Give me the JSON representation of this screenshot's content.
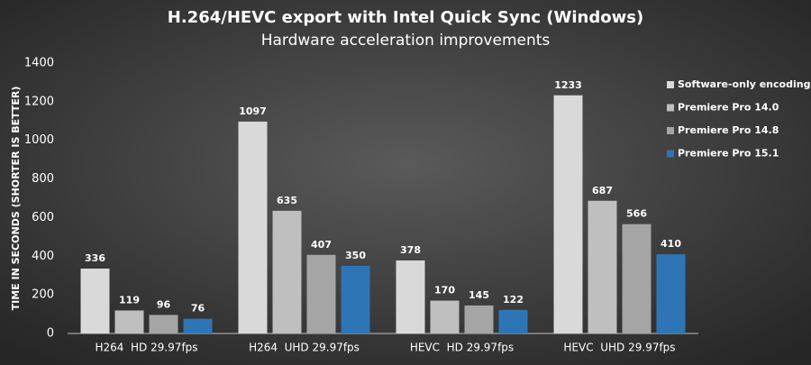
{
  "chart_data": {
    "type": "bar",
    "title": "H.264/HEVC export with Intel Quick Sync (Windows)",
    "subtitle": "Hardware acceleration improvements",
    "y_label": "TIME IN SECONDS (SHORTER IS BETTER)",
    "categories": [
      "H264  HD 29.97fps",
      "H264  UHD 29.97fps",
      "HEVC  HD 29.97fps",
      "HEVC  UHD 29.97fps"
    ],
    "series": [
      {
        "name": "Software-only encoding",
        "color": "#d9d9d9",
        "values": [
          336,
          1097,
          378,
          1233
        ]
      },
      {
        "name": "Premiere Pro 14.0",
        "color": "#bfbfbf",
        "values": [
          119,
          635,
          170,
          687
        ]
      },
      {
        "name": "Premiere Pro 14.8",
        "color": "#a5a5a5",
        "values": [
          96,
          407,
          145,
          566
        ]
      },
      {
        "name": "Premiere Pro 15.1",
        "color": "#2e75b6",
        "values": [
          76,
          350,
          122,
          410
        ]
      }
    ],
    "ylim": [
      0,
      1400
    ],
    "yticks": [
      0,
      200,
      400,
      600,
      800,
      1000,
      1200,
      1400
    ],
    "grid": false,
    "legend": "top-right"
  }
}
